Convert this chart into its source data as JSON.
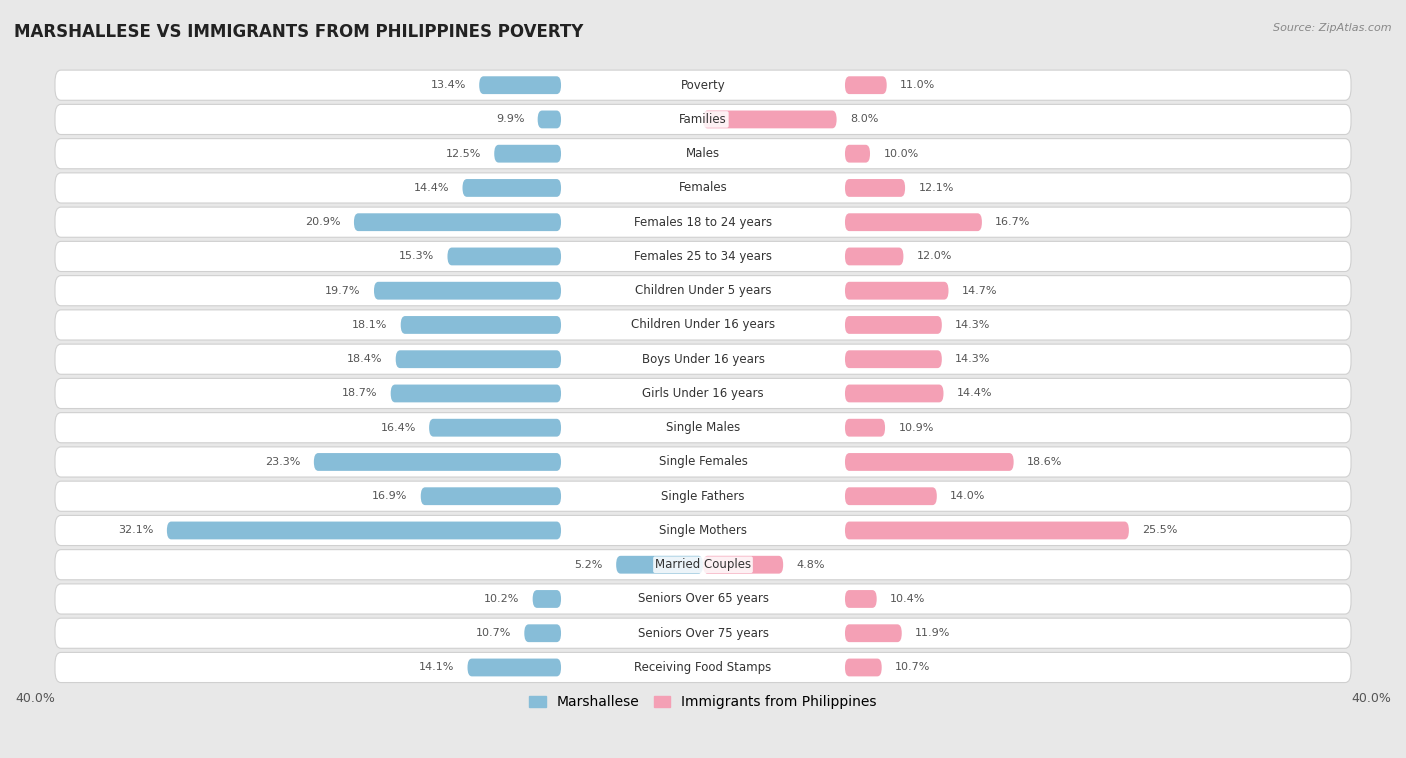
{
  "title": "MARSHALLESE VS IMMIGRANTS FROM PHILIPPINES POVERTY",
  "source": "Source: ZipAtlas.com",
  "categories": [
    "Poverty",
    "Families",
    "Males",
    "Females",
    "Females 18 to 24 years",
    "Females 25 to 34 years",
    "Children Under 5 years",
    "Children Under 16 years",
    "Boys Under 16 years",
    "Girls Under 16 years",
    "Single Males",
    "Single Females",
    "Single Fathers",
    "Single Mothers",
    "Married Couples",
    "Seniors Over 65 years",
    "Seniors Over 75 years",
    "Receiving Food Stamps"
  ],
  "marshallese": [
    13.4,
    9.9,
    12.5,
    14.4,
    20.9,
    15.3,
    19.7,
    18.1,
    18.4,
    18.7,
    16.4,
    23.3,
    16.9,
    32.1,
    5.2,
    10.2,
    10.7,
    14.1
  ],
  "philippines": [
    11.0,
    8.0,
    10.0,
    12.1,
    16.7,
    12.0,
    14.7,
    14.3,
    14.3,
    14.4,
    10.9,
    18.6,
    14.0,
    25.5,
    4.8,
    10.4,
    11.9,
    10.7
  ],
  "marshallese_color": "#87bdd8",
  "philippines_color": "#f4a0b5",
  "axis_limit": 40.0,
  "background_color": "#e8e8e8",
  "row_bg_color": "#ffffff",
  "row_bg_edge_color": "#d0d0d0",
  "legend_marshallese": "Marshallese",
  "legend_philippines": "Immigrants from Philippines",
  "label_fontsize": 8.5,
  "value_fontsize": 8.0,
  "title_fontsize": 12,
  "source_fontsize": 8
}
